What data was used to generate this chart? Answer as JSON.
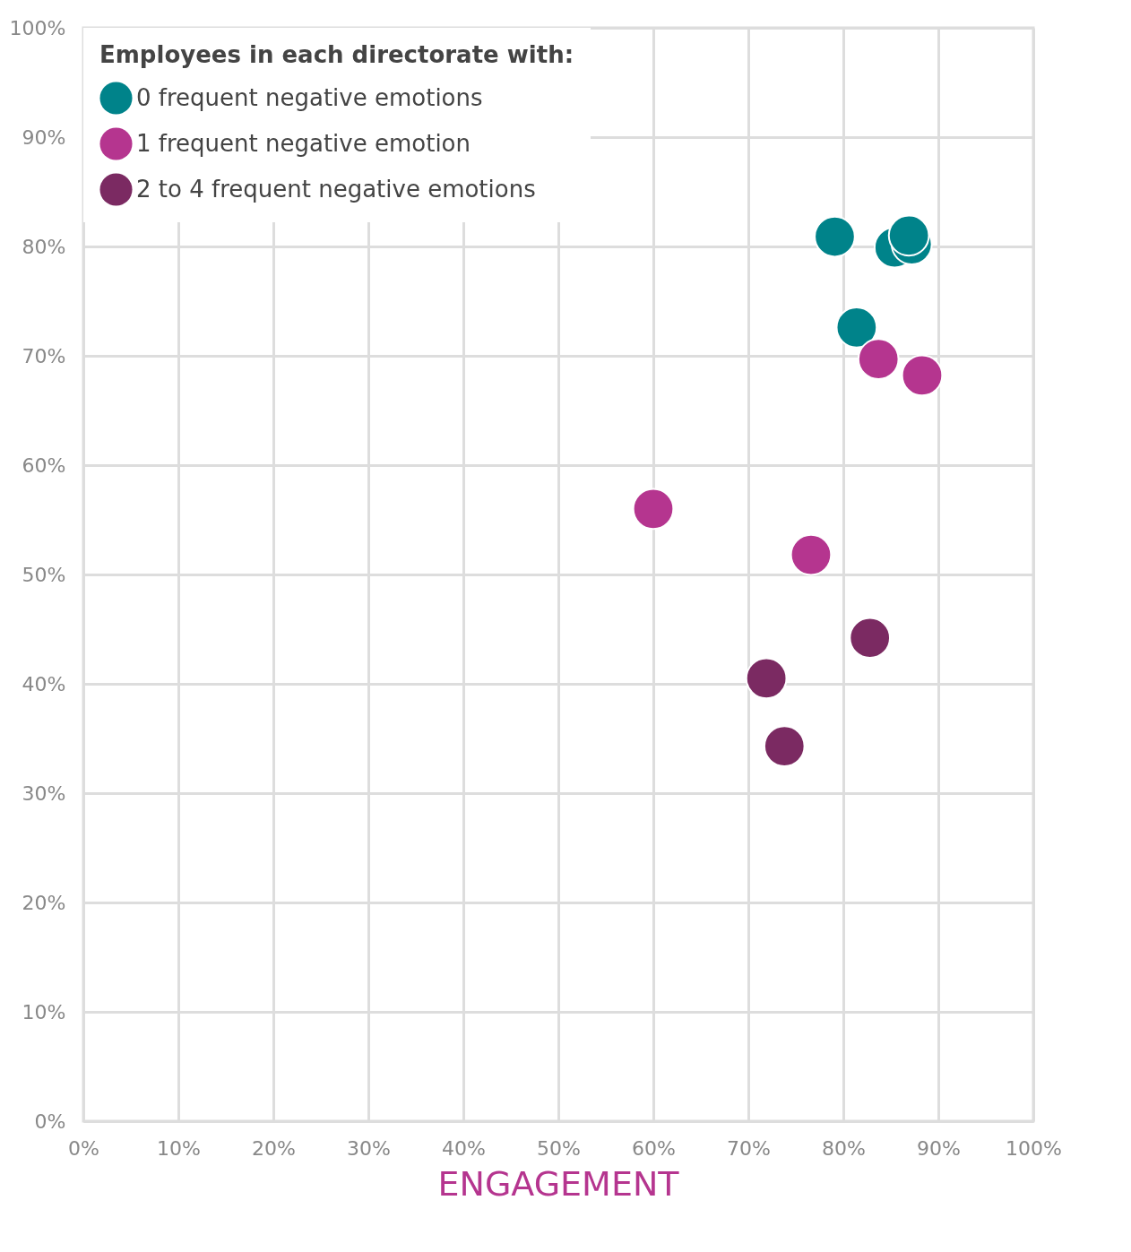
{
  "chart_data": {
    "type": "scatter",
    "xlabel": "ENGAGEMENT",
    "legend_title": "Employees in each directorate with:",
    "legend": "top left",
    "grid": true,
    "marker": "circle",
    "xlim": [
      0,
      100
    ],
    "ylim": [
      0,
      100
    ],
    "xticks": [
      {
        "value": 0,
        "label": "0%"
      },
      {
        "value": 10,
        "label": "10%"
      },
      {
        "value": 20,
        "label": "20%"
      },
      {
        "value": 30,
        "label": "30%"
      },
      {
        "value": 40,
        "label": "40%"
      },
      {
        "value": 50,
        "label": "50%"
      },
      {
        "value": 60,
        "label": "60%"
      },
      {
        "value": 70,
        "label": "70%"
      },
      {
        "value": 80,
        "label": "80%"
      },
      {
        "value": 90,
        "label": "90%"
      },
      {
        "value": 100,
        "label": "100%"
      }
    ],
    "yticks": [
      {
        "value": 0,
        "label": "0%"
      },
      {
        "value": 10,
        "label": "10%"
      },
      {
        "value": 20,
        "label": "20%"
      },
      {
        "value": 30,
        "label": "30%"
      },
      {
        "value": 40,
        "label": "40%"
      },
      {
        "value": 50,
        "label": "50%"
      },
      {
        "value": 60,
        "label": "60%"
      },
      {
        "value": 70,
        "label": "70%"
      },
      {
        "value": 80,
        "label": "80%"
      },
      {
        "value": 90,
        "label": "90%"
      },
      {
        "value": 100,
        "label": "100%"
      }
    ],
    "series": [
      {
        "name": "0 frequent negative emotions",
        "color": "#00838a",
        "x": [
          79.1,
          85.4,
          87.2,
          86.9,
          81.4
        ],
        "values": [
          80.9,
          79.9,
          80.2,
          81.0,
          72.6
        ]
      },
      {
        "name": "1 frequent negative emotion",
        "color": "#b5358f",
        "x": [
          83.7,
          88.3,
          60.0,
          76.6
        ],
        "values": [
          69.7,
          68.2,
          56.0,
          51.8
        ]
      },
      {
        "name": "2 to 4 frequent negative emotions",
        "color": "#7b2a62",
        "x": [
          82.8,
          71.9,
          73.8
        ],
        "values": [
          44.2,
          40.5,
          34.3
        ]
      }
    ]
  }
}
